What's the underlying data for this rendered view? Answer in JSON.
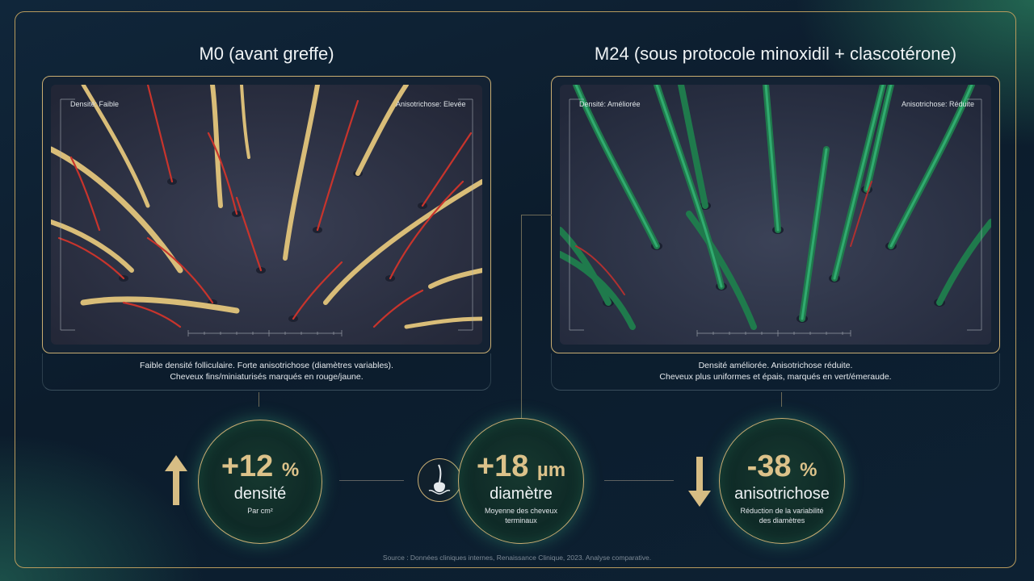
{
  "colors": {
    "gold": "#c9ae74",
    "accent_green": "#2e8c64",
    "background": "#0c1c2c"
  },
  "left_panel": {
    "title": "M0 (avant greffe)",
    "tag_density": "Densité: Faible",
    "tag_aniso": "Anisotrichose: Elevée",
    "caption_line1": "Faible densité folliculaire. Forte anisotrichose (diamètres variables).",
    "caption_line2": "Cheveux fins/miniaturisés marqués en rouge/jaune."
  },
  "right_panel": {
    "title": "M24 (sous protocole minoxidil + clascotérone)",
    "tag_density": "Densité: Améliorée",
    "tag_aniso": "Anisotrichose: Réduite",
    "caption_line1": "Densité améliorée. Anisotrichose réduite.",
    "caption_line2": "Cheveux plus uniformes et épais, marqués en vert/émeraude."
  },
  "metrics": [
    {
      "value": "+12",
      "unit": "%",
      "label": "densité",
      "sub": "Par cm²",
      "icon": "arrow-up-icon"
    },
    {
      "value": "+18",
      "unit": "µm",
      "label": "diamètre",
      "sub_line1": "Moyenne des cheveux",
      "sub_line2": "terminaux",
      "icon": "hair-follicle-icon"
    },
    {
      "value": "-38",
      "unit": "%",
      "label": "anisotrichose",
      "sub_line1": "Réduction de la variabilité",
      "sub_line2": "des diamètres",
      "icon": "arrow-down-icon"
    }
  ],
  "source": "Source : Données cliniques internes, Renaissance Clinique, 2023. Analyse comparative."
}
